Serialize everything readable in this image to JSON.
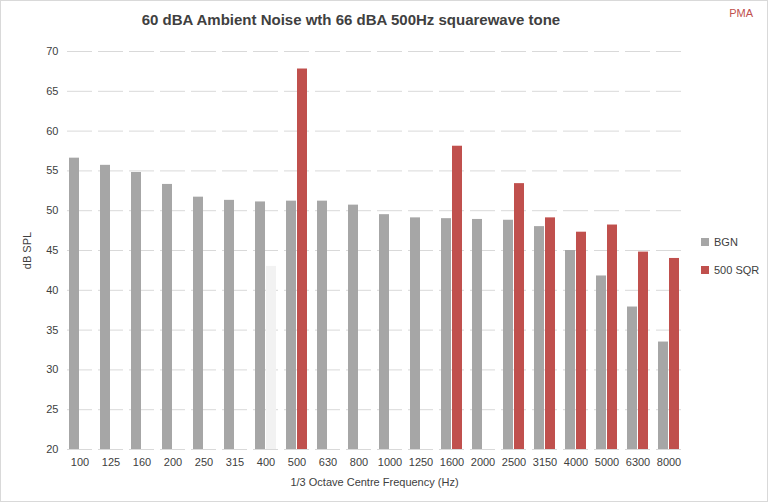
{
  "chart_data": {
    "type": "bar",
    "title": "60 dBA Ambient Noise wth 66 dBA 500Hz squarewave tone",
    "annotations": [
      "PMA"
    ],
    "x_label": "1/3 Octave Centre Frequency (Hz)",
    "y_label": "dB SPL",
    "categories": [
      "100",
      "125",
      "160",
      "200",
      "250",
      "315",
      "400",
      "500",
      "630",
      "800",
      "1000",
      "1250",
      "1600",
      "2000",
      "2500",
      "3150",
      "4000",
      "5000",
      "6300",
      "8000"
    ],
    "series": [
      {
        "name": "BGN",
        "color": "#a6a6a6",
        "values": [
          56.6,
          55.7,
          54.8,
          53.3,
          51.7,
          51.3,
          51.1,
          51.2,
          51.2,
          50.7,
          49.5,
          49.1,
          49.0,
          48.9,
          48.8,
          48.0,
          45.0,
          41.8,
          37.9,
          33.5
        ]
      },
      {
        "name": "500 SQR",
        "color": "#c0504d",
        "colors": [
          "#c0504d",
          "#c0504d",
          "#c0504d",
          "#c0504d",
          "#c0504d",
          "#c0504d",
          "#f2f2f2",
          "#c0504d",
          "#c0504d",
          "#c0504d",
          "#c0504d",
          "#c0504d",
          "#c0504d",
          "#c0504d",
          "#c0504d",
          "#c0504d",
          "#c0504d",
          "#c0504d",
          "#c0504d",
          "#c0504d"
        ],
        "values": [
          null,
          null,
          null,
          null,
          null,
          null,
          43.0,
          67.8,
          null,
          null,
          null,
          null,
          58.1,
          null,
          53.4,
          49.1,
          47.3,
          48.2,
          44.8,
          44.0
        ]
      }
    ],
    "ylim": [
      20,
      70
    ],
    "yticks": [
      20,
      25,
      30,
      35,
      40,
      45,
      50,
      55,
      60,
      65,
      70
    ],
    "grid": true,
    "legend": "right"
  }
}
